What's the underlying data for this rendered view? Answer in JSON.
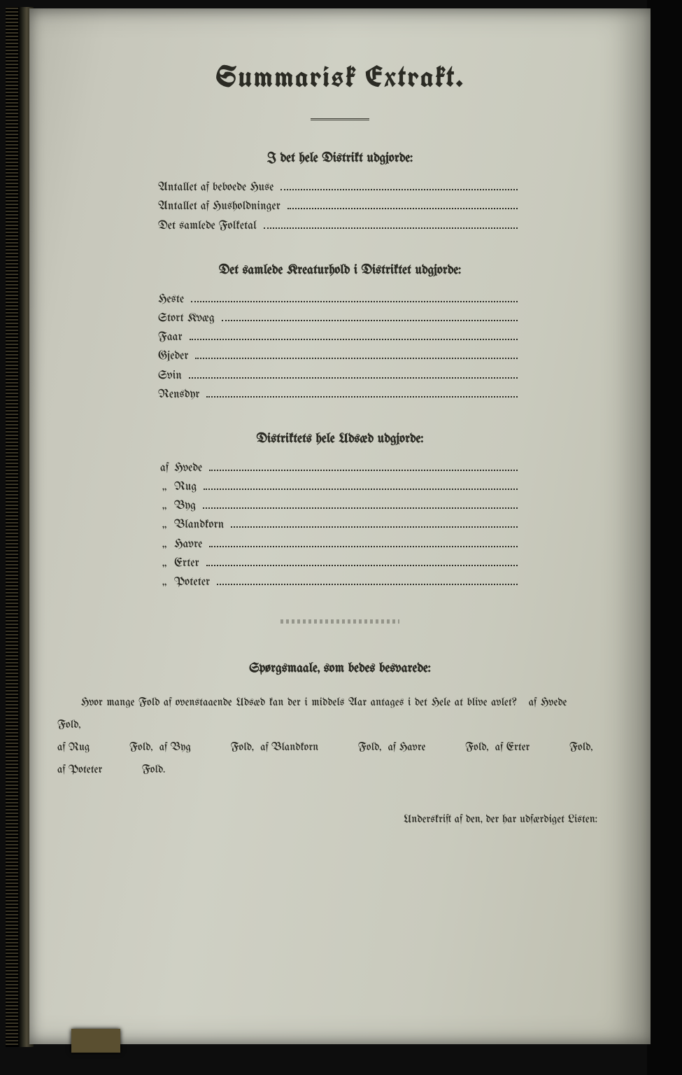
{
  "title": "Summarisk Extrakt.",
  "section1": {
    "heading": "I det hele Distrikt udgjorde:",
    "rows": [
      "Antallet af beboede Huse",
      "Antallet af Husholdninger",
      "Det samlede Folketal"
    ]
  },
  "section2": {
    "heading": "Det samlede Kreaturhold i Distriktet udgjorde:",
    "rows": [
      "Heste",
      "Stort Kvæg",
      "Faar",
      "Gjeder",
      "Svin",
      "Rensdyr"
    ]
  },
  "section3": {
    "heading": "Distriktets hele Udsæd udgjorde:",
    "lead": "af",
    "ditto": "„",
    "rows": [
      "Hvede",
      "Rug",
      "Byg",
      "Blandkorn",
      "Havre",
      "Erter",
      "Poteter"
    ]
  },
  "questions": {
    "heading": "Spørgsmaale, som bedes besvarede:",
    "line1_a": "Hvor mange Fold af ovenstaaende Udsæd kan der i middels Aar antages i det Hele at blive avlet?",
    "line1_b": "af Hvede",
    "fold": "Fold,",
    "fold_end": "Fold.",
    "items": [
      "af Rug",
      "af Byg",
      "af Blandkorn",
      "af Havre",
      "af Erter",
      "af Poteter"
    ]
  },
  "footer": "Underskrift af den, der har udfærdiget Listen:",
  "colors": {
    "page": "#cfd0c4",
    "ink": "#2b2b24",
    "background": "#0a0a0a"
  }
}
